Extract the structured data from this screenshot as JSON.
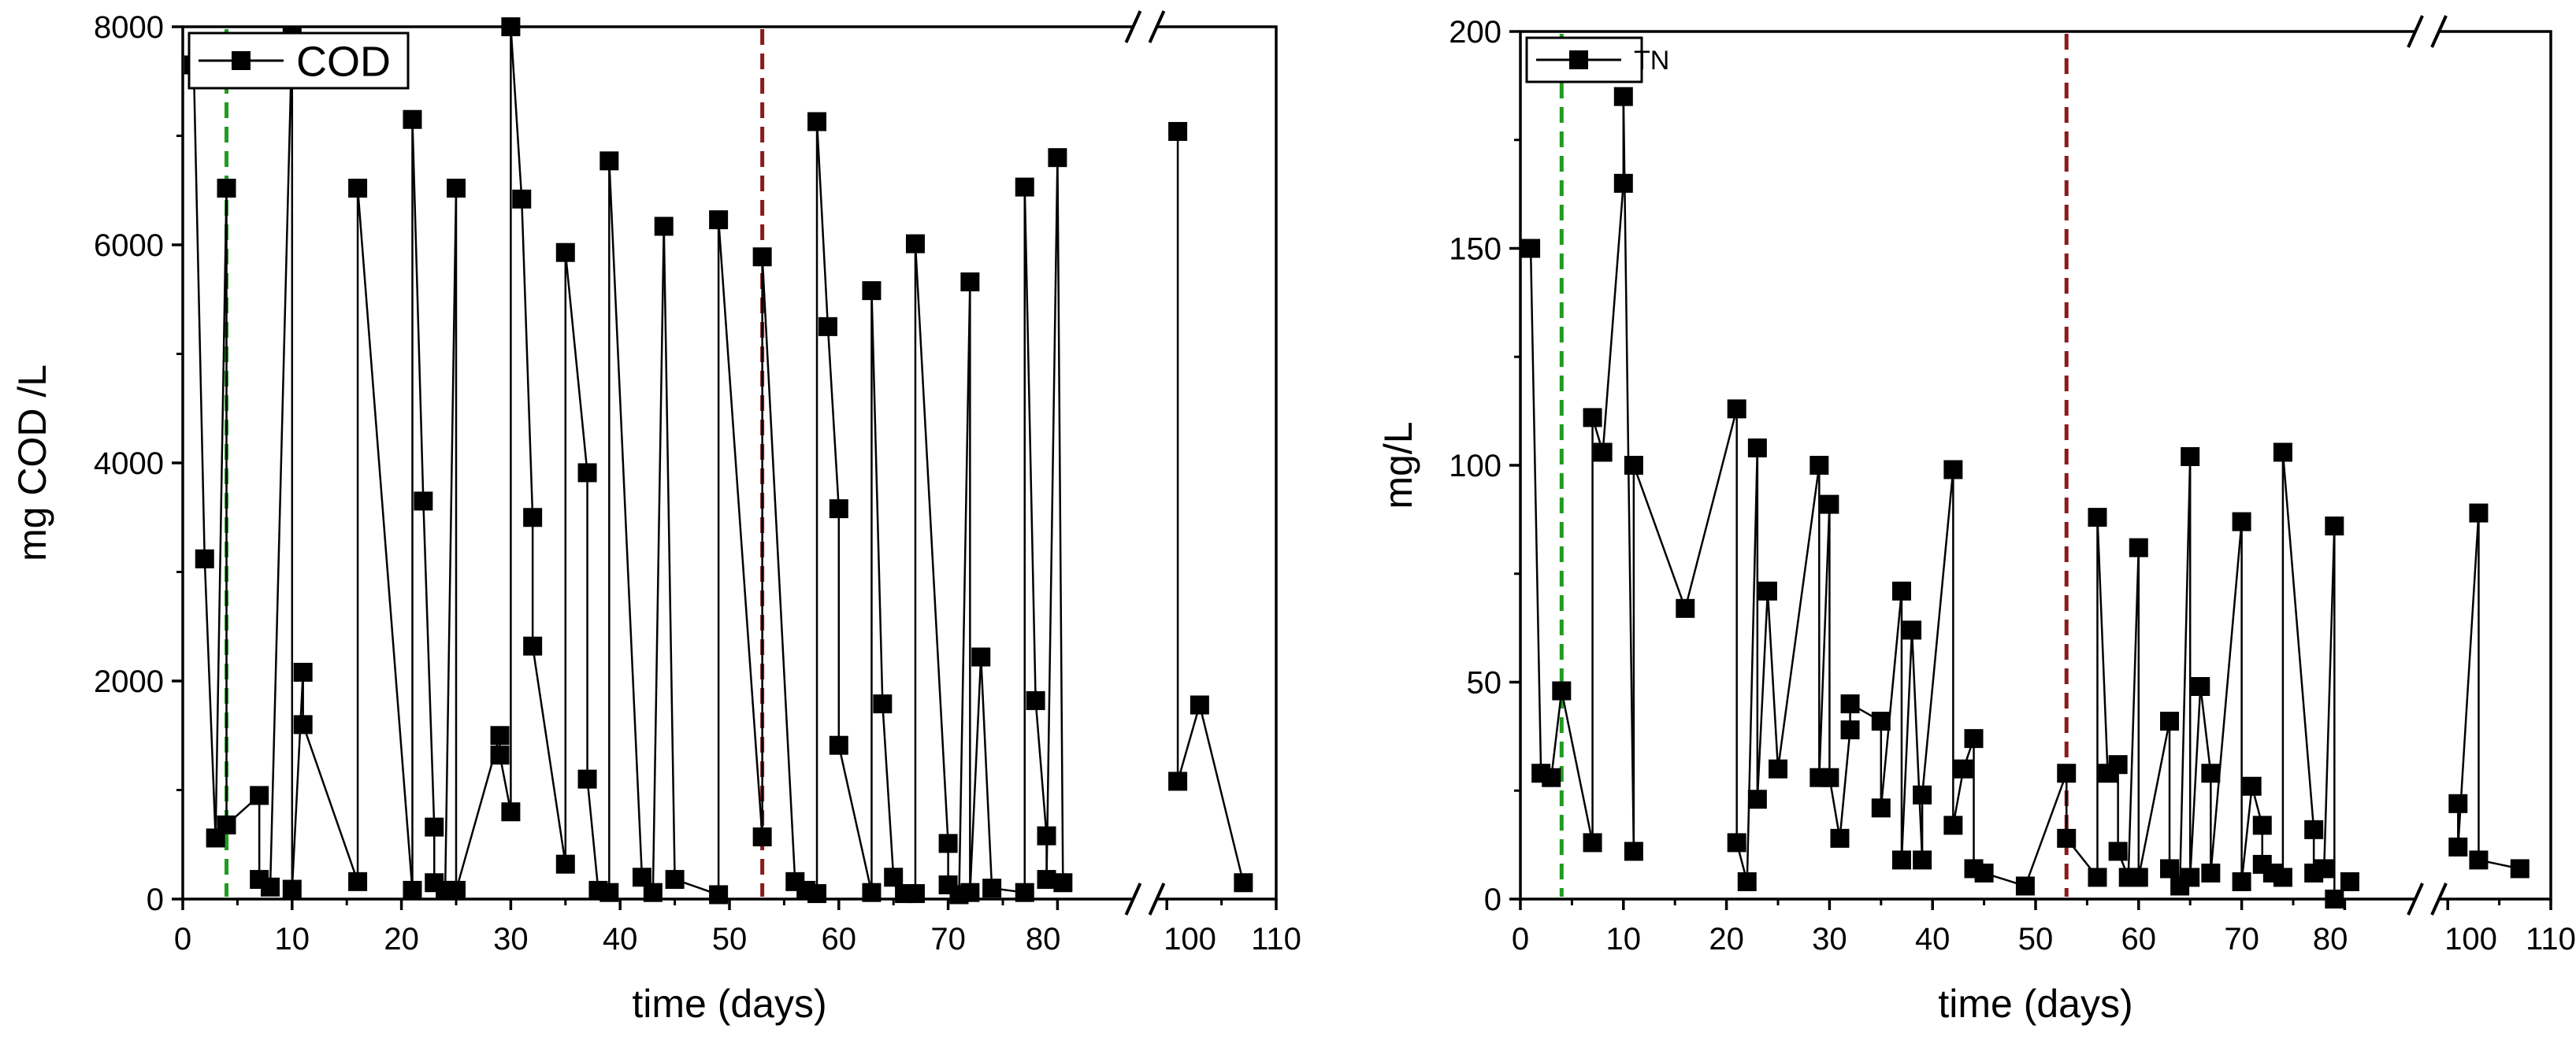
{
  "chart_data": [
    {
      "type": "line",
      "title": "",
      "xlabel": "time (days)",
      "ylabel": "mg COD /L",
      "xlim": [
        0,
        110
      ],
      "ylim": [
        0,
        8000
      ],
      "x_ticks": [
        0,
        10,
        20,
        30,
        40,
        50,
        60,
        70,
        80,
        100,
        110
      ],
      "x_tick_labels": [
        "0",
        "10",
        "20",
        "30",
        "40",
        "50",
        "60",
        "70",
        "80",
        "100",
        "110"
      ],
      "y_ticks": [
        0,
        2000,
        4000,
        6000,
        8000
      ],
      "y_tick_labels": [
        "0",
        "2000",
        "4000",
        "6000",
        "8000"
      ],
      "axis_break": "between 80 and 100 on the x axis",
      "legend": {
        "label": "COD",
        "position": "top-left",
        "marker": "square",
        "color": "#000000"
      },
      "vlines": [
        {
          "x": 4,
          "color": "#1f9b1f",
          "style": "dashed"
        },
        {
          "x": 53,
          "color": "#8b1a1a",
          "style": "dashed"
        }
      ],
      "series": [
        {
          "name": "COD",
          "color": "#000000",
          "points": [
            [
              1,
              7650
            ],
            [
              2,
              3120
            ],
            [
              3,
              560
            ],
            [
              4,
              6520
            ],
            [
              4,
              680
            ],
            [
              7,
              950
            ],
            [
              7,
              180
            ],
            [
              8,
              110
            ],
            [
              10,
              7920
            ],
            [
              10,
              90
            ],
            [
              11,
              2080
            ],
            [
              11,
              1600
            ],
            [
              16,
              160
            ],
            [
              16,
              6520
            ],
            [
              21,
              80
            ],
            [
              21,
              7150
            ],
            [
              22,
              3650
            ],
            [
              23,
              660
            ],
            [
              23,
              150
            ],
            [
              24,
              80
            ],
            [
              25,
              6520
            ],
            [
              25,
              80
            ],
            [
              29,
              1500
            ],
            [
              29,
              1320
            ],
            [
              30,
              800
            ],
            [
              30,
              8000
            ],
            [
              31,
              6420
            ],
            [
              32,
              3500
            ],
            [
              32,
              2320
            ],
            [
              35,
              320
            ],
            [
              35,
              5930
            ],
            [
              37,
              3910
            ],
            [
              37,
              1100
            ],
            [
              38,
              80
            ],
            [
              39,
              60
            ],
            [
              39,
              6770
            ],
            [
              42,
              200
            ],
            [
              43,
              60
            ],
            [
              44,
              6170
            ],
            [
              45,
              180
            ],
            [
              49,
              40
            ],
            [
              49,
              6230
            ],
            [
              53,
              570
            ],
            [
              53,
              5890
            ],
            [
              56,
              160
            ],
            [
              57,
              80
            ],
            [
              58,
              50
            ],
            [
              58,
              7130
            ],
            [
              59,
              5250
            ],
            [
              60,
              3580
            ],
            [
              60,
              1410
            ],
            [
              63,
              60
            ],
            [
              63,
              5580
            ],
            [
              64,
              1790
            ],
            [
              65,
              200
            ],
            [
              66,
              50
            ],
            [
              67,
              50
            ],
            [
              67,
              6010
            ],
            [
              70,
              510
            ],
            [
              70,
              130
            ],
            [
              71,
              40
            ],
            [
              72,
              5660
            ],
            [
              72,
              60
            ],
            [
              73,
              2220
            ],
            [
              74,
              100
            ],
            [
              77,
              60
            ],
            [
              77,
              6530
            ],
            [
              78,
              1820
            ],
            [
              79,
              580
            ],
            [
              79,
              180
            ],
            [
              80,
              6800
            ],
            [
              81,
              150
            ],
            [
              101,
              7040
            ],
            [
              101,
              1080
            ],
            [
              103,
              1780
            ],
            [
              107,
              150
            ]
          ]
        }
      ]
    },
    {
      "type": "line",
      "title": "",
      "xlabel": "time (days)",
      "ylabel": "mg/L",
      "xlim": [
        0,
        110
      ],
      "ylim": [
        0,
        200
      ],
      "x_ticks": [
        0,
        10,
        20,
        30,
        40,
        50,
        60,
        70,
        80,
        100,
        110
      ],
      "x_tick_labels": [
        "0",
        "10",
        "20",
        "30",
        "40",
        "50",
        "60",
        "70",
        "80",
        "100",
        "110"
      ],
      "y_ticks": [
        0,
        50,
        100,
        150,
        200
      ],
      "y_tick_labels": [
        "0",
        "50",
        "100",
        "150",
        "200"
      ],
      "axis_break": "between 80 and 100 on the x axis",
      "legend": {
        "label": "TN",
        "position": "top-left",
        "marker": "square",
        "color": "#000000"
      },
      "vlines": [
        {
          "x": 4,
          "color": "#1f9b1f",
          "style": "dashed"
        },
        {
          "x": 53,
          "color": "#8b1a1a",
          "style": "dashed"
        }
      ],
      "series": [
        {
          "name": "TN",
          "color": "#000000",
          "points": [
            [
              1,
              150
            ],
            [
              2,
              29
            ],
            [
              3,
              28
            ],
            [
              4,
              48
            ],
            [
              7,
              13
            ],
            [
              7,
              111
            ],
            [
              8,
              103
            ],
            [
              10,
              165
            ],
            [
              10,
              185
            ],
            [
              11,
              11
            ],
            [
              11,
              100
            ],
            [
              16,
              67
            ],
            [
              21,
              113
            ],
            [
              21,
              13
            ],
            [
              22,
              4
            ],
            [
              23,
              104
            ],
            [
              23,
              23
            ],
            [
              24,
              71
            ],
            [
              25,
              30
            ],
            [
              29,
              100
            ],
            [
              29,
              28
            ],
            [
              30,
              91
            ],
            [
              30,
              28
            ],
            [
              31,
              14
            ],
            [
              32,
              39
            ],
            [
              32,
              45
            ],
            [
              35,
              41
            ],
            [
              35,
              21
            ],
            [
              37,
              71
            ],
            [
              37,
              9
            ],
            [
              38,
              62
            ],
            [
              39,
              9
            ],
            [
              39,
              24
            ],
            [
              42,
              99
            ],
            [
              42,
              17
            ],
            [
              43,
              30
            ],
            [
              44,
              37
            ],
            [
              44,
              7
            ],
            [
              45,
              6
            ],
            [
              49,
              3
            ],
            [
              53,
              29
            ],
            [
              53,
              14
            ],
            [
              56,
              5
            ],
            [
              56,
              88
            ],
            [
              57,
              29
            ],
            [
              58,
              31
            ],
            [
              58,
              11
            ],
            [
              59,
              5
            ],
            [
              60,
              81
            ],
            [
              60,
              5
            ],
            [
              63,
              41
            ],
            [
              63,
              7
            ],
            [
              64,
              3
            ],
            [
              65,
              102
            ],
            [
              65,
              5
            ],
            [
              66,
              49
            ],
            [
              67,
              29
            ],
            [
              67,
              6
            ],
            [
              70,
              87
            ],
            [
              70,
              4
            ],
            [
              71,
              26
            ],
            [
              72,
              17
            ],
            [
              72,
              8
            ],
            [
              73,
              6
            ],
            [
              74,
              5
            ],
            [
              74,
              103
            ],
            [
              77,
              16
            ],
            [
              77,
              6
            ],
            [
              78,
              7
            ],
            [
              79,
              86
            ],
            [
              79,
              0
            ],
            [
              81,
              4
            ],
            [
              101,
              22
            ],
            [
              101,
              12
            ],
            [
              103,
              89
            ],
            [
              103,
              9
            ],
            [
              107,
              7
            ]
          ]
        }
      ]
    }
  ]
}
